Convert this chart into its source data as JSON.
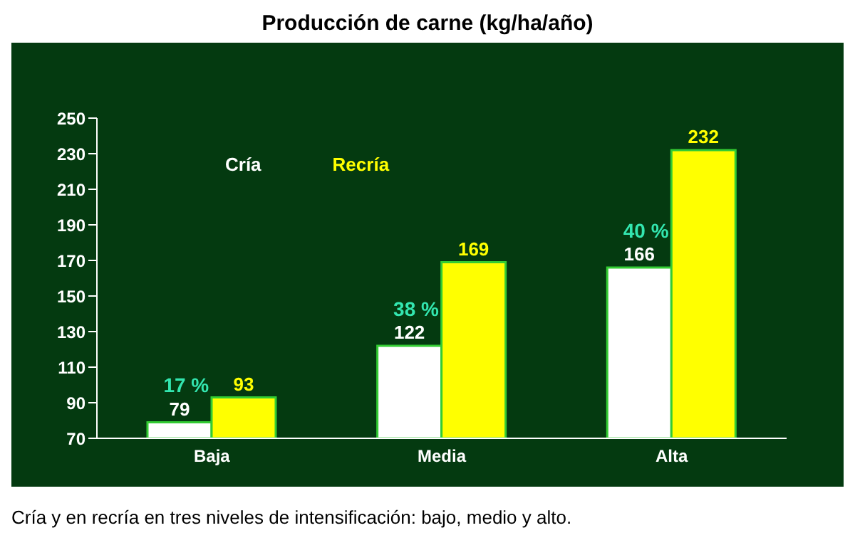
{
  "chart_data": {
    "type": "bar",
    "title": "Producción de carne (kg/ha/año)",
    "categories": [
      "Baja",
      "Media",
      "Alta"
    ],
    "series": [
      {
        "name": "Cría",
        "color": "#ffffff",
        "values": [
          79,
          122,
          166
        ]
      },
      {
        "name": "Recría",
        "color": "#ffff00",
        "values": [
          93,
          169,
          232
        ]
      }
    ],
    "ylim": [
      70,
      250
    ],
    "yticks": [
      70,
      90,
      110,
      130,
      150,
      170,
      190,
      210,
      230,
      250
    ],
    "grid": false,
    "legend": "top left",
    "data_labels": true,
    "annotations": [
      "17 %",
      "38 %",
      "40 %",
      "Cría y en recría en tres niveles de intensificación: bajo, medio y alto."
    ]
  }
}
